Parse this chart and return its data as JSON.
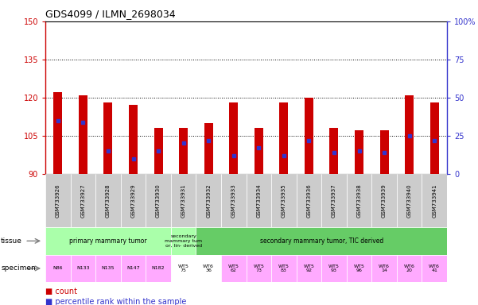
{
  "title": "GDS4099 / ILMN_2698034",
  "samples": [
    "GSM733926",
    "GSM733927",
    "GSM733928",
    "GSM733929",
    "GSM733930",
    "GSM733931",
    "GSM733932",
    "GSM733933",
    "GSM733934",
    "GSM733935",
    "GSM733936",
    "GSM733937",
    "GSM733938",
    "GSM733939",
    "GSM733940",
    "GSM733941"
  ],
  "counts": [
    122,
    121,
    118,
    117,
    108,
    108,
    110,
    118,
    108,
    118,
    120,
    108,
    107,
    107,
    121,
    118
  ],
  "percentile_ranks": [
    35,
    34,
    15,
    10,
    15,
    20,
    22,
    12,
    17,
    12,
    22,
    14,
    15,
    14,
    25,
    22
  ],
  "ylim_left": [
    90,
    150
  ],
  "ylim_right": [
    0,
    100
  ],
  "yticks_left": [
    90,
    105,
    120,
    135,
    150
  ],
  "yticks_right": [
    0,
    25,
    50,
    75,
    100
  ],
  "bar_color": "#cc0000",
  "dot_color": "#3333cc",
  "bar_width": 0.35,
  "grid_color": "#000000",
  "tissue_groups": [
    {
      "label": "primary mammary tumor",
      "start": 0,
      "end": 4,
      "color": "#aaffaa"
    },
    {
      "label": "secondary\nmammary tum\nor, lin- derived",
      "start": 5,
      "end": 5,
      "color": "#aaffaa"
    },
    {
      "label": "secondary mammary tumor, TIC derived",
      "start": 6,
      "end": 15,
      "color": "#66cc66"
    }
  ],
  "specimen_labels": [
    "N86",
    "N133",
    "N135",
    "N147",
    "N182",
    "WT5\n75",
    "WT6\n36",
    "WT5\n62",
    "WT5\n73",
    "WT5\n83",
    "WT5\n92",
    "WT5\n93",
    "WT5\n96",
    "WT6\n14",
    "WT6\n20",
    "WT6\n41"
  ],
  "specimen_colors": [
    "#ffaaff",
    "#ffaaff",
    "#ffaaff",
    "#ffaaff",
    "#ffaaff",
    "#ffffff",
    "#ffffff",
    "#ffaaff",
    "#ffaaff",
    "#ffaaff",
    "#ffaaff",
    "#ffaaff",
    "#ffaaff",
    "#ffaaff",
    "#ffaaff",
    "#ffaaff"
  ],
  "legend_count_color": "#cc0000",
  "legend_dot_color": "#3333cc",
  "background_color": "#ffffff",
  "tick_label_color_left": "#cc0000",
  "tick_label_color_right": "#3333cc",
  "plot_bg": "#ffffff"
}
